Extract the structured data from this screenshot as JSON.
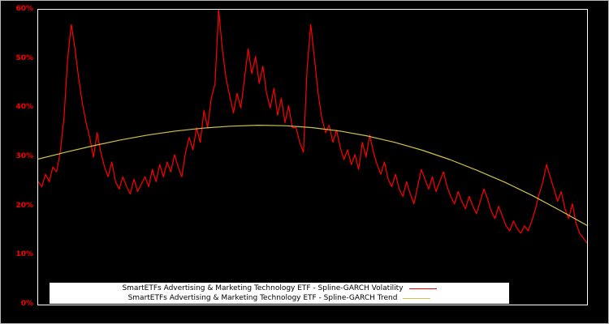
{
  "figure": {
    "background": "#000000",
    "outer_border_color": "#b8b8b8",
    "plot_border_color": "#ffffff",
    "axis_label_color": "#ff0000"
  },
  "chart_data": {
    "type": "line",
    "title": "",
    "xlabel": "",
    "ylabel": "",
    "ylim": [
      0,
      60
    ],
    "grid": false,
    "legend_position": "bottom-center",
    "yticks": [
      {
        "value": 60,
        "label": "60%"
      },
      {
        "value": 50,
        "label": "50%"
      },
      {
        "value": 40,
        "label": "40%"
      },
      {
        "value": 30,
        "label": "30%"
      },
      {
        "value": 20,
        "label": "20%"
      },
      {
        "value": 10,
        "label": "10%"
      },
      {
        "value": 0,
        "label": "0%"
      }
    ],
    "series": [
      {
        "name": "SmartETFs Advertising & Marketing Technology ETF - Spline-GARCH Volatility",
        "color": "#ff0000",
        "data_name": "volatility-line",
        "stroke_width": 1.2,
        "values": [
          25,
          24,
          26.5,
          25,
          28,
          27,
          31,
          38,
          50,
          57,
          52,
          46,
          41,
          37,
          34,
          30,
          35,
          31,
          28,
          26,
          29,
          25,
          23.5,
          26,
          24,
          22.5,
          25.5,
          23,
          24.5,
          26,
          24,
          27.5,
          25,
          28.5,
          26,
          29,
          27,
          30.5,
          28,
          26,
          31,
          34,
          31.5,
          36,
          33,
          39.5,
          36,
          42,
          45,
          60,
          52,
          46,
          42.5,
          39,
          43,
          40,
          46,
          52,
          47,
          50.5,
          45,
          48.5,
          43,
          40,
          44,
          38.5,
          42,
          37,
          40.5,
          36,
          36,
          33,
          31,
          48,
          57,
          50,
          43,
          38,
          35,
          36.5,
          33,
          35.5,
          32,
          29.5,
          31.5,
          28.5,
          30.5,
          27.5,
          33,
          30,
          34.5,
          31,
          28.5,
          26.5,
          29,
          25.5,
          24,
          26.5,
          23.5,
          22,
          25,
          22.5,
          20.5,
          24,
          27.5,
          25.5,
          23.5,
          26,
          23,
          25,
          27,
          24,
          22,
          20.5,
          23,
          21,
          19.5,
          22,
          20,
          18.5,
          21,
          23.5,
          21.5,
          19,
          17.5,
          20,
          18,
          16,
          15,
          17,
          15.5,
          14.5,
          16,
          15,
          17,
          19.5,
          22.5,
          25,
          28.5,
          26,
          23.5,
          21,
          23,
          19.5,
          17.5,
          20.5,
          16.5,
          14.5,
          13.5,
          12.5
        ]
      },
      {
        "name": "SmartETFs Advertising & Marketing Technology ETF - Spline-GARCH Trend",
        "color": "#cfc24e",
        "data_name": "trend-line",
        "stroke_width": 1.2,
        "values": [
          29.6,
          31.0,
          32.3,
          33.5,
          34.5,
          35.3,
          35.9,
          36.3,
          36.5,
          36.4,
          36.0,
          35.3,
          34.3,
          33.0,
          31.4,
          29.5,
          27.3,
          24.9,
          22.2,
          19.2,
          16.1
        ]
      }
    ]
  }
}
